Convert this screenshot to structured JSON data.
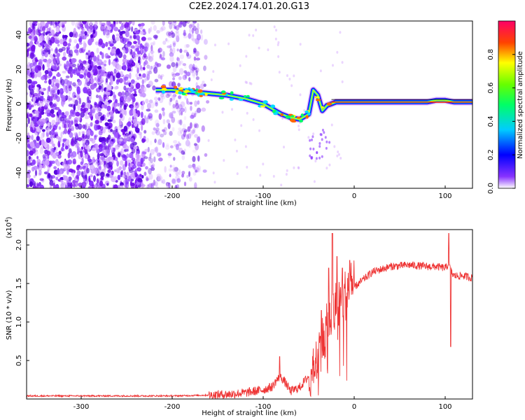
{
  "page": {
    "title": "C2E2.2024.174.01.20.G13"
  },
  "chart_data": [
    {
      "type": "heatmap",
      "xlabel": "Height of straight line (km)",
      "ylabel": "Frequency (Hz)",
      "xlim": [
        -360,
        130
      ],
      "ylim": [
        -49,
        48
      ],
      "xticks": [
        -300,
        -200,
        -100,
        0,
        100
      ],
      "yticks": [
        -40,
        -20,
        0,
        20,
        40
      ],
      "ridge": {
        "x": [
          -218,
          -200,
          -180,
          -160,
          -140,
          -120,
          -100,
          -90,
          -80,
          -70,
          -60,
          -50,
          -45,
          -40,
          -35,
          -30,
          -20,
          -10,
          0,
          20,
          40,
          60,
          80,
          90,
          100,
          110,
          120,
          130
        ],
        "y": [
          8,
          8,
          7,
          6,
          5,
          3,
          0,
          -3,
          -6,
          -8,
          -9,
          -6,
          8,
          5,
          -4,
          -1,
          1,
          1,
          1,
          1,
          1,
          1,
          1,
          2,
          2,
          1,
          1,
          1
        ]
      },
      "colorbar": {
        "label": "Normalized spectral amplitude",
        "range": [
          0,
          1
        ],
        "ticks": [
          "0.0",
          "0.2",
          "0.4",
          "0.6",
          "0.8"
        ],
        "colormap": [
          "#ffffff",
          "#6600ff",
          "#0000ff",
          "#00ffff",
          "#00ff00",
          "#ffff00",
          "#ff0000",
          "#ff0088"
        ]
      }
    },
    {
      "type": "line",
      "xlabel": "Height of straight line (km)",
      "ylabel": "SNR (10 * v/v)",
      "multiplier": "(x10^4)",
      "multiplier_base": "(x10",
      "multiplier_exp": "4",
      "multiplier_close": ")",
      "xlim": [
        -360,
        130
      ],
      "ylim": [
        0,
        2.2
      ],
      "xticks": [
        -300,
        -200,
        -100,
        0,
        100
      ],
      "yticks": [
        0.5,
        1.0,
        1.5,
        2.0
      ],
      "ytick_labels": [
        "0.5",
        "1.0",
        "1.5",
        "2.0"
      ],
      "color": "#ee3333",
      "series": [
        {
          "x": [
            -360,
            -300,
            -250,
            -200,
            -160,
            -140,
            -120,
            -110,
            -100,
            -90,
            -85,
            -80,
            -75,
            -70,
            -60,
            -50,
            -45,
            -40,
            -35,
            -30,
            -25,
            -20,
            -15,
            -10,
            -5,
            0,
            10,
            20,
            40,
            60,
            80,
            90,
            100,
            104,
            106,
            108,
            110,
            120,
            130
          ],
          "y": [
            0.04,
            0.04,
            0.04,
            0.04,
            0.05,
            0.06,
            0.08,
            0.1,
            0.12,
            0.16,
            0.25,
            0.28,
            0.2,
            0.1,
            0.15,
            0.3,
            0.5,
            0.6,
            0.75,
            0.9,
            1.1,
            1.2,
            1.3,
            1.35,
            1.45,
            1.45,
            1.55,
            1.65,
            1.72,
            1.74,
            1.72,
            1.72,
            1.7,
            1.75,
            1.68,
            1.62,
            1.6,
            1.6,
            1.57
          ],
          "spikes": [
            {
              "x": -82,
              "y": 0.55
            },
            {
              "x": -36,
              "y": 1.15
            },
            {
              "x": -28,
              "y": 1.7
            },
            {
              "x": -24,
              "y": 2.15
            },
            {
              "x": -19,
              "y": 1.85
            },
            {
              "x": -13,
              "y": 1.7
            },
            {
              "x": -5,
              "y": 1.8
            },
            {
              "x": 104,
              "y": 2.15
            },
            {
              "x": 106,
              "y": 0.68
            }
          ]
        }
      ]
    }
  ]
}
